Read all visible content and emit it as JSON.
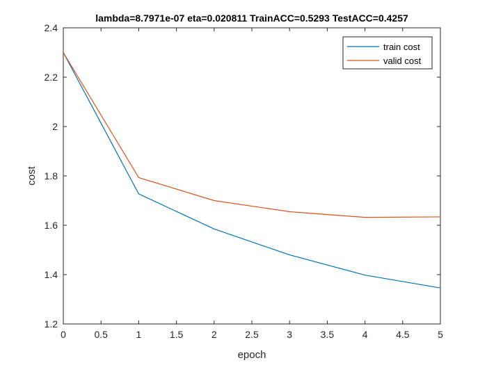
{
  "chart_data": {
    "type": "line",
    "title": "lambda=8.7971e-07 eta=0.020811 TrainACC=0.5293 TestACC=0.4257",
    "xlabel": "epoch",
    "ylabel": "cost",
    "xlim": [
      0,
      5
    ],
    "ylim": [
      1.2,
      2.4
    ],
    "xticks": [
      "0",
      "0.5",
      "1",
      "1.5",
      "2",
      "2.5",
      "3",
      "3.5",
      "4",
      "4.5",
      "5"
    ],
    "yticks": [
      "1.2",
      "1.4",
      "1.6",
      "1.8",
      "2",
      "2.2",
      "2.4"
    ],
    "x": [
      0,
      1,
      2,
      3,
      4,
      5
    ],
    "series": [
      {
        "name": "train cost",
        "color": "#0072BD",
        "values": [
          2.3,
          1.727,
          1.585,
          1.48,
          1.398,
          1.346
        ]
      },
      {
        "name": "valid cost",
        "color": "#D95319",
        "values": [
          2.3,
          1.793,
          1.7,
          1.655,
          1.632,
          1.634
        ]
      }
    ],
    "grid": false,
    "legend_position": "top-right"
  }
}
